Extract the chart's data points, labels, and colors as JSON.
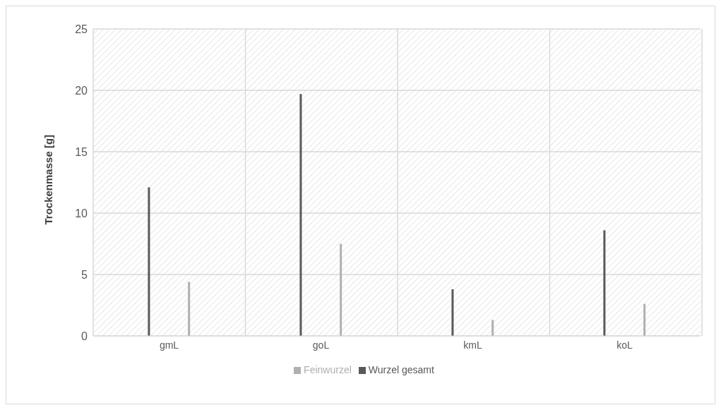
{
  "chart_data": {
    "type": "bar",
    "ylabel": "Trockenmasse [g]",
    "categories": [
      "gmL",
      "goL",
      "kmL",
      "koL"
    ],
    "series": [
      {
        "name": "Wurzel gesamt",
        "color": "#595959",
        "values": [
          12.1,
          19.7,
          3.8,
          8.6
        ]
      },
      {
        "name": "Feinwurzel",
        "color": "#b0b0b0",
        "values": [
          4.4,
          7.5,
          1.3,
          2.6
        ]
      }
    ],
    "ylim": [
      0,
      25
    ],
    "yticks": [
      0,
      5,
      10,
      15,
      20,
      25
    ],
    "grid": true,
    "legend": "bottom"
  }
}
